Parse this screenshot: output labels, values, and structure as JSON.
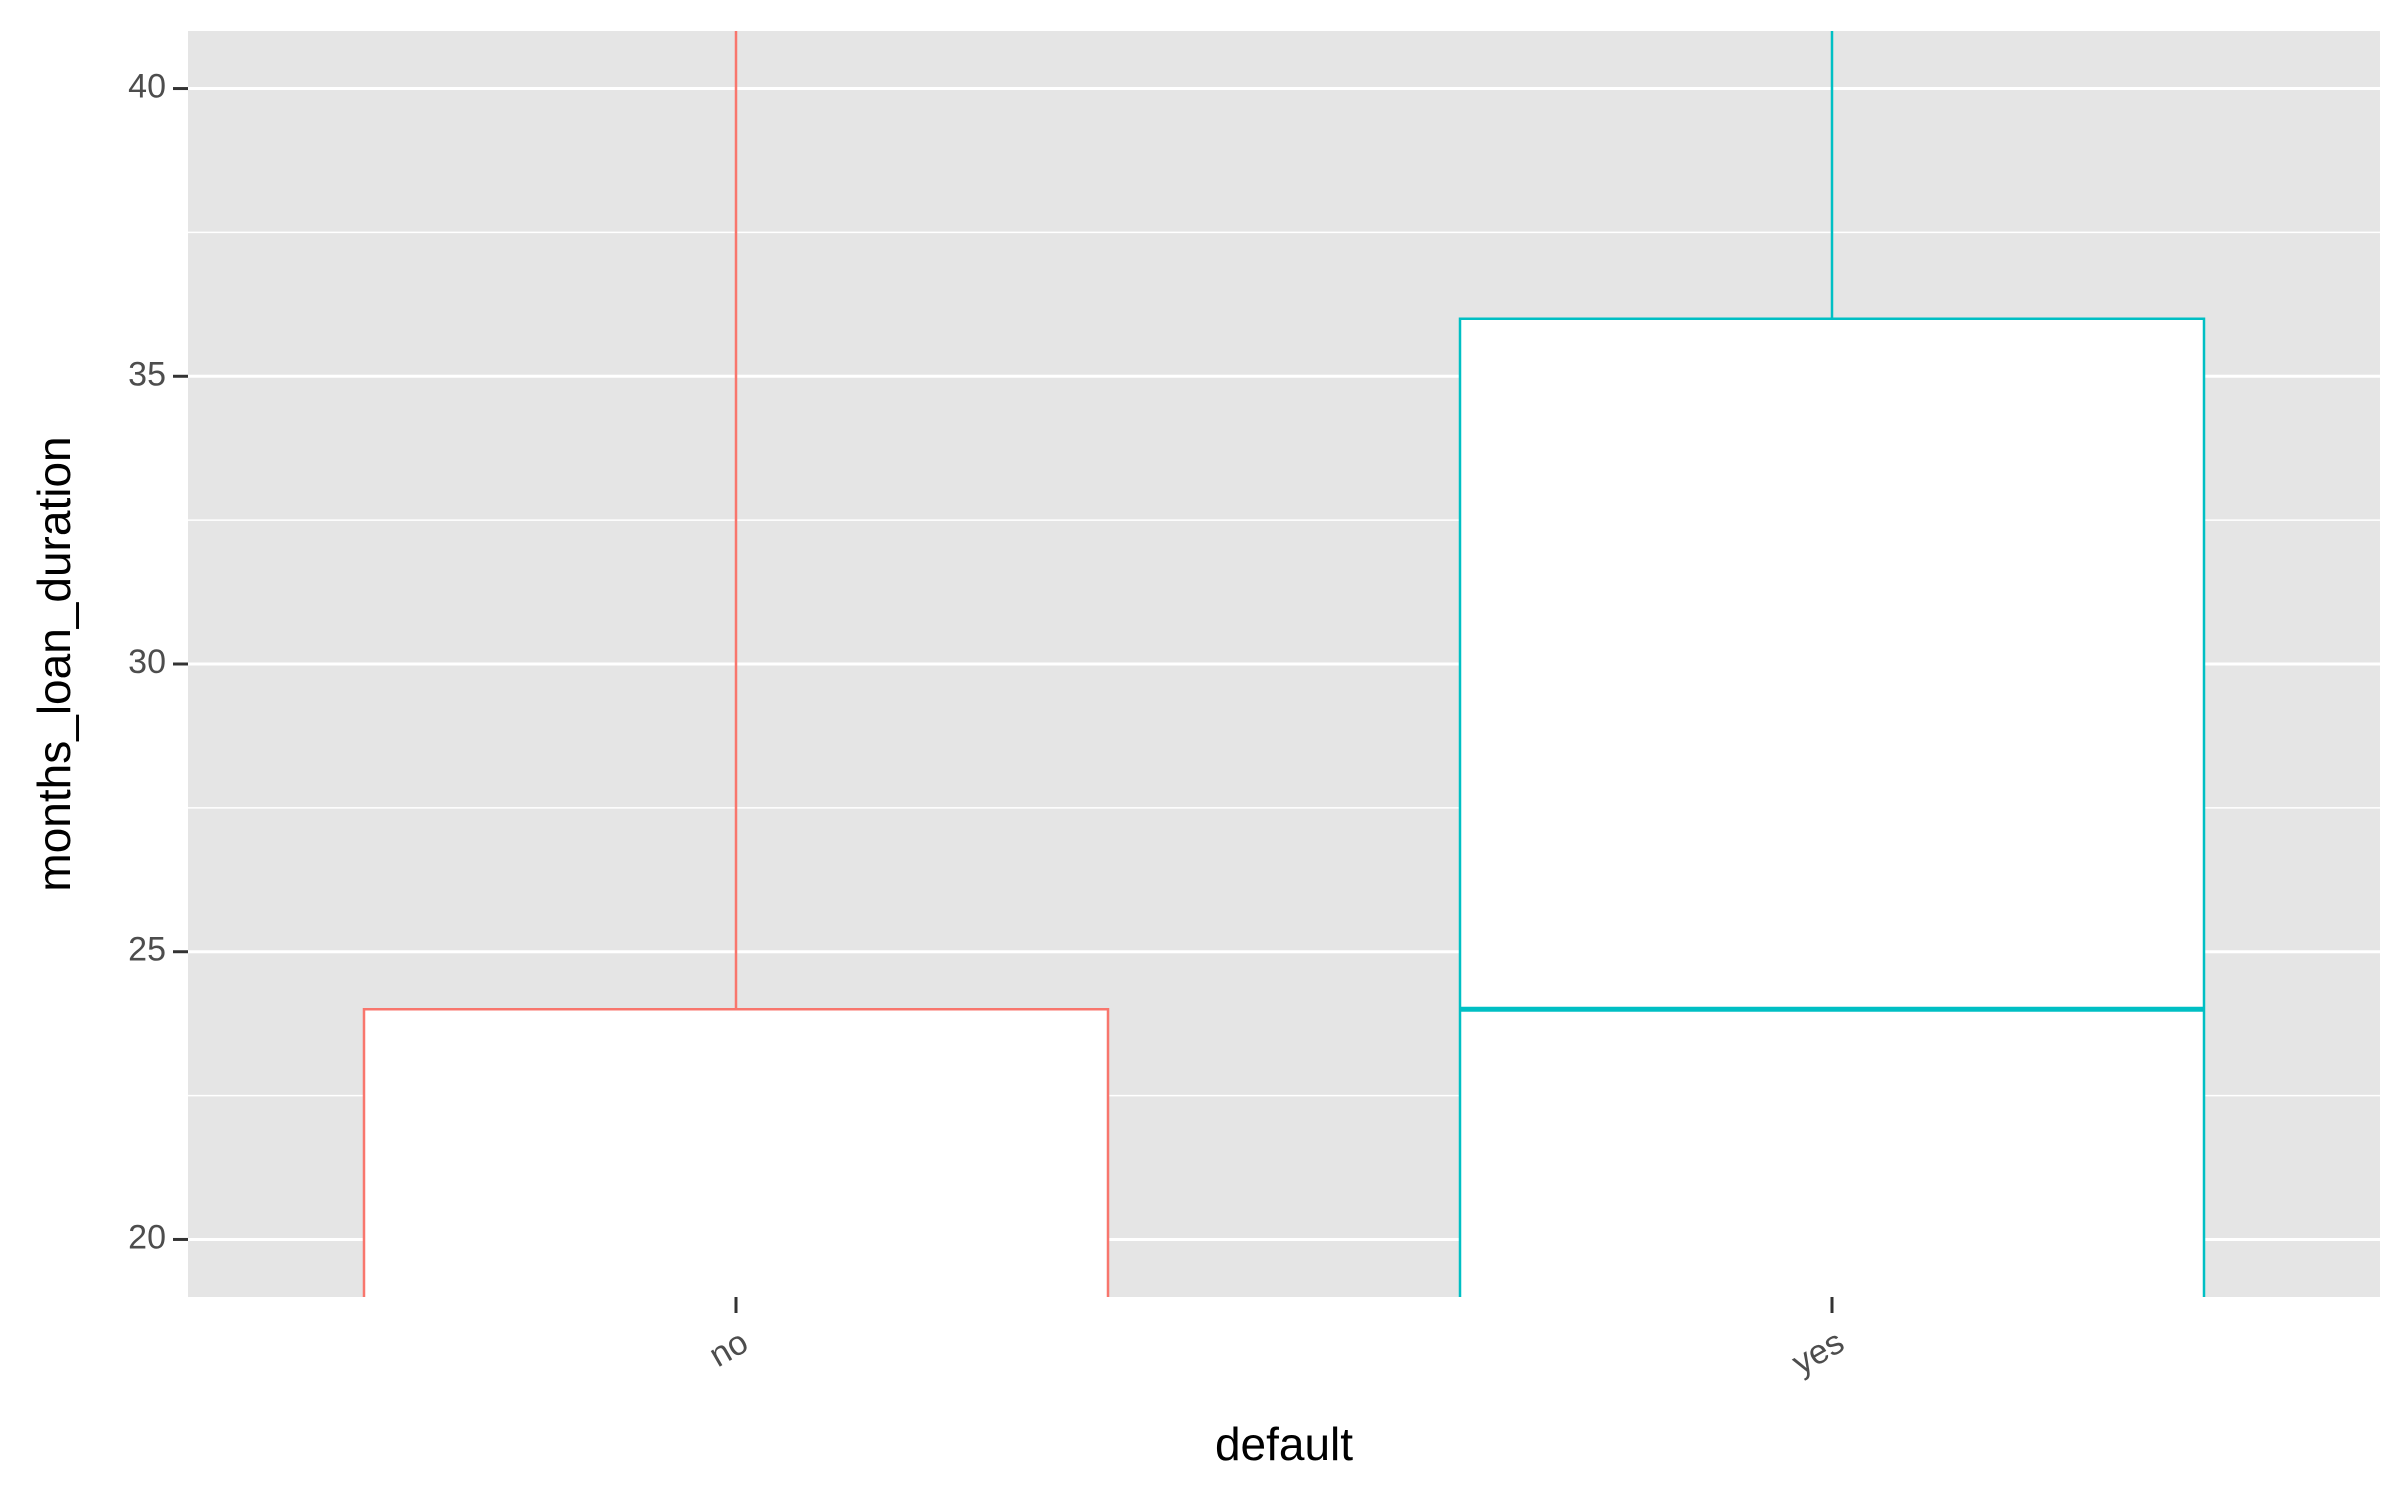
{
  "chart_data": {
    "type": "box",
    "x_label": "default",
    "y_label": "months_loan_duration",
    "categories": [
      "no",
      "yes"
    ],
    "series": [
      {
        "name": "default",
        "colors": [
          "#F8766D",
          "#00BFC4"
        ],
        "q3": [
          24,
          36
        ],
        "median": [
          null,
          24
        ]
      }
    ],
    "ylim": [
      19.0,
      41.0
    ],
    "yticks": [
      20,
      25,
      30,
      35,
      40
    ],
    "grid": true
  }
}
